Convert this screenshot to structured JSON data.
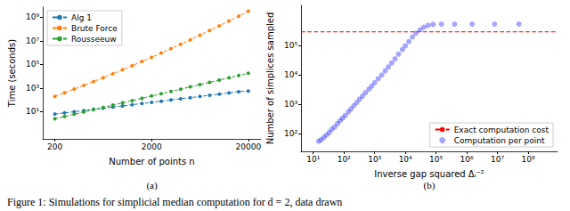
{
  "caption": "Figure 1: Simulations for simplicial median computation for d = 2, data drawn",
  "chart_data": [
    {
      "type": "line",
      "annotations": [
        "(a)"
      ],
      "x_label": "Number of points n",
      "y_label": "Time (seconds)",
      "log": true,
      "grid": false,
      "legend": "upper left",
      "marker": "circle",
      "line_style": "dashed",
      "xlim": [
        150,
        27000
      ],
      "ylim": [
        0.05,
        7000000000
      ],
      "xticks": [
        200,
        2000,
        20000
      ],
      "yticks": [
        {
          "value": 10,
          "label": "10¹"
        },
        {
          "value": 1000,
          "label": "10³"
        },
        {
          "value": 100000,
          "label": "10⁵"
        },
        {
          "value": 10000000,
          "label": "10⁷"
        },
        {
          "value": 1000000000,
          "label": "10⁹"
        }
      ],
      "x": [
        200,
        252,
        317,
        399,
        502,
        632,
        796,
        1002,
        1262,
        1589,
        2000,
        2518,
        3170,
        3991,
        5024,
        6325,
        7962,
        10024,
        12619,
        15887,
        20000
      ],
      "series": [
        {
          "name": "Alg 1",
          "color": "#1f77b4",
          "values": [
            6.3,
            7.9,
            10,
            12.5,
            15.8,
            19.5,
            24.5,
            30.9,
            38.9,
            48.9,
            61.5,
            77.4,
            97.4,
            122.6,
            154,
            194,
            245,
            308,
            387,
            487,
            562
          ]
        },
        {
          "name": "Brute Force",
          "color": "#ff7f0e",
          "values": [
            200,
            401,
            817,
            1690,
            3530,
            7500,
            16100,
            35200,
            78000,
            175000,
            398000,
            918000,
            2150000,
            5090000,
            12200000,
            29900000,
            73800000,
            185000000,
            470000000,
            1210000000,
            3160000000
          ]
        },
        {
          "name": "Rousseeuw",
          "color": "#2ca02c",
          "values": [
            2.5,
            3.9,
            6.1,
            9.5,
            14.8,
            23,
            36,
            56,
            87,
            136,
            212,
            330,
            514,
            800,
            1250,
            1950,
            3030,
            4720,
            7350,
            11500,
            17800
          ]
        }
      ]
    },
    {
      "type": "scatter",
      "annotations": [
        "(b)"
      ],
      "x_label": "Inverse gap squared Δᵢ⁻²",
      "y_label": "Number of simplices sampled",
      "log": true,
      "grid": false,
      "legend": "lower right",
      "xlim": [
        4,
        900000000
      ],
      "ylim": [
        25,
        2400000
      ],
      "xticks": [
        {
          "value": 10,
          "label": "10¹"
        },
        {
          "value": 100,
          "label": "10²"
        },
        {
          "value": 1000,
          "label": "10³"
        },
        {
          "value": 10000,
          "label": "10⁴"
        },
        {
          "value": 100000,
          "label": "10⁵"
        },
        {
          "value": 1000000,
          "label": "10⁶"
        },
        {
          "value": 10000000,
          "label": "10⁷"
        },
        {
          "value": 100000000,
          "label": "10⁸"
        }
      ],
      "yticks": [
        {
          "value": 100,
          "label": "10²"
        },
        {
          "value": 1000,
          "label": "10³"
        },
        {
          "value": 10000,
          "label": "10⁴"
        },
        {
          "value": 100000,
          "label": "10⁵"
        }
      ],
      "series": [
        {
          "name": "Exact computation cost",
          "type": "hline",
          "color": "#ff0000",
          "line_style": "dashed",
          "values": [
            300000
          ]
        },
        {
          "name": "Computation per point",
          "type": "scatter",
          "color": "#0000ff",
          "marker": "circle",
          "x": [
            15,
            18,
            22,
            27,
            33,
            40,
            50,
            62,
            75,
            90,
            110,
            140,
            170,
            210,
            260,
            320,
            400,
            500,
            650,
            800,
            1000,
            1300,
            1700,
            2200,
            2800,
            3600,
            4600,
            6000,
            8000,
            10000,
            13000,
            17000,
            22000,
            30000,
            40000,
            55000,
            80000,
            150000,
            400000,
            1500000,
            8000000,
            50000000
          ],
          "values": [
            55,
            62,
            75,
            90,
            110,
            140,
            170,
            220,
            280,
            340,
            420,
            560,
            700,
            900,
            1150,
            1500,
            1900,
            2500,
            3300,
            4200,
            5500,
            7500,
            10000,
            14000,
            19000,
            26000,
            36000,
            52000,
            75000,
            100000,
            140000,
            200000,
            270000,
            350000,
            430000,
            500000,
            540000,
            550000,
            550000,
            550000,
            550000,
            550000
          ]
        }
      ]
    }
  ]
}
